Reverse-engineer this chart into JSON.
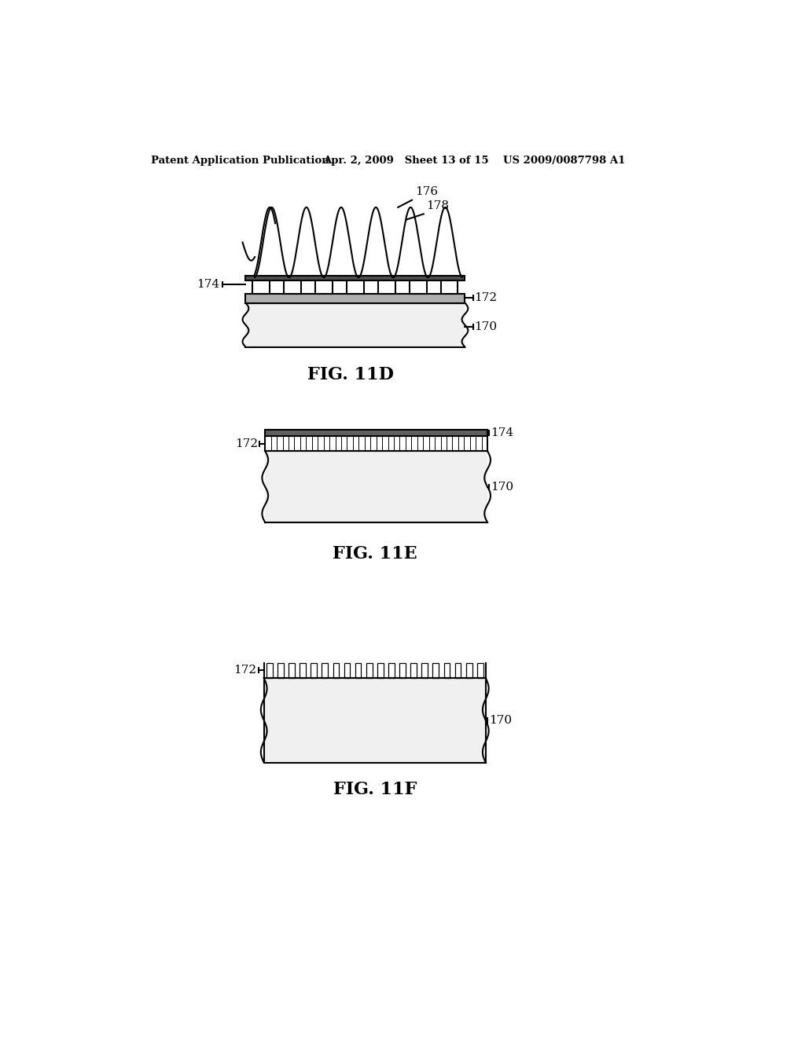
{
  "bg_color": "#ffffff",
  "header_left": "Patent Application Publication",
  "header_mid": "Apr. 2, 2009   Sheet 13 of 15",
  "header_right": "US 2009/0087798 A1",
  "fig11d_label": "FIG. 11D",
  "fig11e_label": "FIG. 11E",
  "fig11f_label": "FIG. 11F",
  "label_176": "176",
  "label_178": "178",
  "label_174_d": "174",
  "label_172_d": "172",
  "label_170_d": "170",
  "label_172_e": "172",
  "label_174_e": "174",
  "label_170_e": "170",
  "label_172_f": "172",
  "label_170_f": "170",
  "line_color": "#000000"
}
